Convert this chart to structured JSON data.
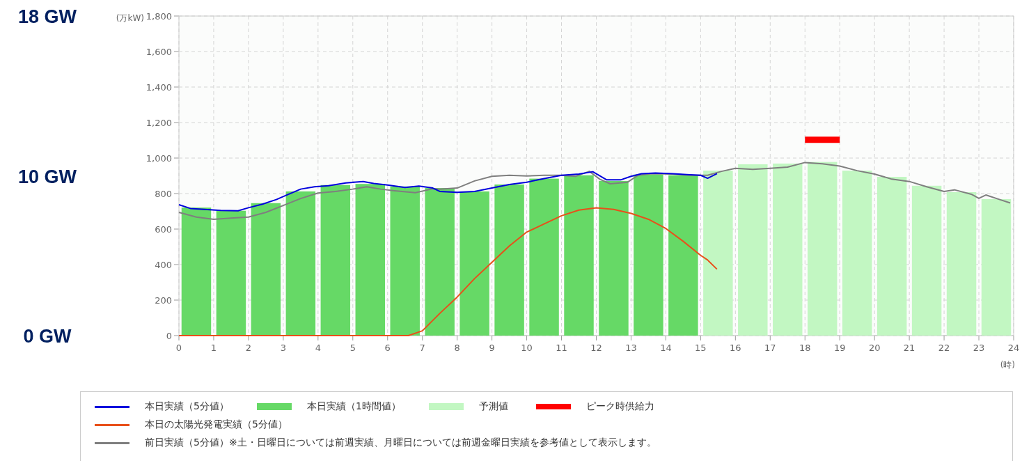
{
  "chart_data": {
    "type": "bar",
    "xlabel": "(時)",
    "ylabel": "(万kW)",
    "xlim": [
      0,
      24
    ],
    "ylim": [
      0,
      1800
    ],
    "xticks": [
      0,
      1,
      2,
      3,
      4,
      5,
      6,
      7,
      8,
      9,
      10,
      11,
      12,
      13,
      14,
      15,
      16,
      17,
      18,
      19,
      20,
      21,
      22,
      23,
      24
    ],
    "yticks": [
      0,
      200,
      400,
      600,
      800,
      {
        "value": 1000,
        "label": "1,000"
      },
      {
        "value": 1200,
        "label": "1,200"
      },
      {
        "value": 1400,
        "label": "1,400"
      },
      {
        "value": 1600,
        "label": "1,600"
      },
      {
        "value": 1800,
        "label": "1,800"
      }
    ],
    "grid": true,
    "legend": "bottom",
    "line_style": "solid",
    "marker": "none",
    "annotations": [
      "18 GW",
      "10 GW",
      "0 GW"
    ],
    "series": [
      {
        "name": "本日実績（5分値）",
        "type": "line",
        "color": "#0000dd",
        "x": [
          0,
          0.33,
          0.9,
          1.2,
          1.7,
          2.0,
          2.4,
          2.8,
          3.1,
          3.5,
          3.9,
          4.3,
          4.8,
          5.3,
          5.6,
          6.0,
          6.5,
          6.9,
          7.3,
          7.5,
          8,
          8.5,
          9,
          9.5,
          10,
          10.5,
          11,
          11.5,
          11.9,
          12.3,
          12.7,
          13.0,
          13.3,
          13.7,
          14.2,
          14.6,
          15.0,
          15.2,
          15.47
        ],
        "values": [
          737,
          716,
          709,
          705,
          703,
          720,
          740,
          766,
          792,
          825,
          838,
          844,
          860,
          868,
          857,
          848,
          834,
          842,
          831,
          812,
          807,
          812,
          831,
          851,
          864,
          884,
          903,
          910,
          923,
          877,
          877,
          897,
          912,
          916,
          912,
          907,
          903,
          886,
          912
        ]
      },
      {
        "name": "本日実績（1時間値）",
        "color": "#66d966",
        "x": [
          0.5,
          1.5,
          2.5,
          3.5,
          4.5,
          5.5,
          6.5,
          7.5,
          8.5,
          9.5,
          10.5,
          11.5,
          12.5,
          13.5,
          14.5
        ],
        "values": [
          721,
          703,
          746,
          812,
          848,
          854,
          840,
          831,
          812,
          851,
          884,
          903,
          871,
          907,
          903
        ]
      },
      {
        "name": "予測値",
        "color": "#c2f7c2",
        "x": [
          15.5,
          16.5,
          17.5,
          18.5,
          19.5,
          20.5,
          21.5,
          22.5,
          23.5
        ],
        "values": [
          929,
          965,
          969,
          978,
          929,
          894,
          844,
          808,
          769
        ]
      },
      {
        "name": "ピーク時供給力",
        "type": "line",
        "color": "#ff0000",
        "x": [
          18,
          19
        ],
        "values": [
          1103,
          1103
        ]
      },
      {
        "name": "本日の太陽光発電実績（5分値）",
        "type": "line",
        "color": "#e8501a",
        "x": [
          0,
          6.6,
          7,
          7.5,
          8,
          8.5,
          9,
          9.5,
          10,
          10.5,
          11,
          11.5,
          12,
          12.5,
          13,
          13.5,
          14,
          14.5,
          15,
          15.2,
          15.47
        ],
        "values": [
          0,
          0,
          27,
          125,
          217,
          321,
          413,
          505,
          583,
          629,
          675,
          707,
          720,
          711,
          688,
          655,
          603,
          531,
          452,
          426,
          374
        ]
      },
      {
        "name": "前日実績（5分値）※土・日曜日については前週実績、月曜日については前週金曜日実績を参考値として表示します。",
        "type": "line",
        "color": "#7f7f7f",
        "x": [
          0,
          0.5,
          1,
          1.5,
          2,
          2.5,
          3,
          3.5,
          4,
          4.5,
          5,
          5.4,
          5.8,
          6.2,
          6.8,
          7.3,
          7.5,
          8,
          8.5,
          9,
          9.5,
          10,
          10.5,
          11,
          11.4,
          11.8,
          12.1,
          12.4,
          12.9,
          13.2,
          13.6,
          14.2,
          14.7,
          15.2,
          15.6,
          16,
          16.5,
          17,
          17.5,
          18,
          18.5,
          19,
          19.5,
          20,
          20.5,
          21,
          21.5,
          22,
          22.3,
          22.8,
          23.0,
          23.2,
          23.6,
          23.9
        ],
        "values": [
          694,
          668,
          655,
          662,
          668,
          694,
          733,
          772,
          803,
          812,
          825,
          838,
          825,
          816,
          805,
          827,
          825,
          831,
          871,
          897,
          903,
          899,
          903,
          903,
          897,
          925,
          881,
          855,
          864,
          903,
          912,
          910,
          903,
          903,
          925,
          942,
          936,
          942,
          949,
          975,
          968,
          955,
          929,
          910,
          881,
          868,
          838,
          812,
          821,
          795,
          773,
          792,
          766,
          747
        ]
      }
    ]
  }
}
